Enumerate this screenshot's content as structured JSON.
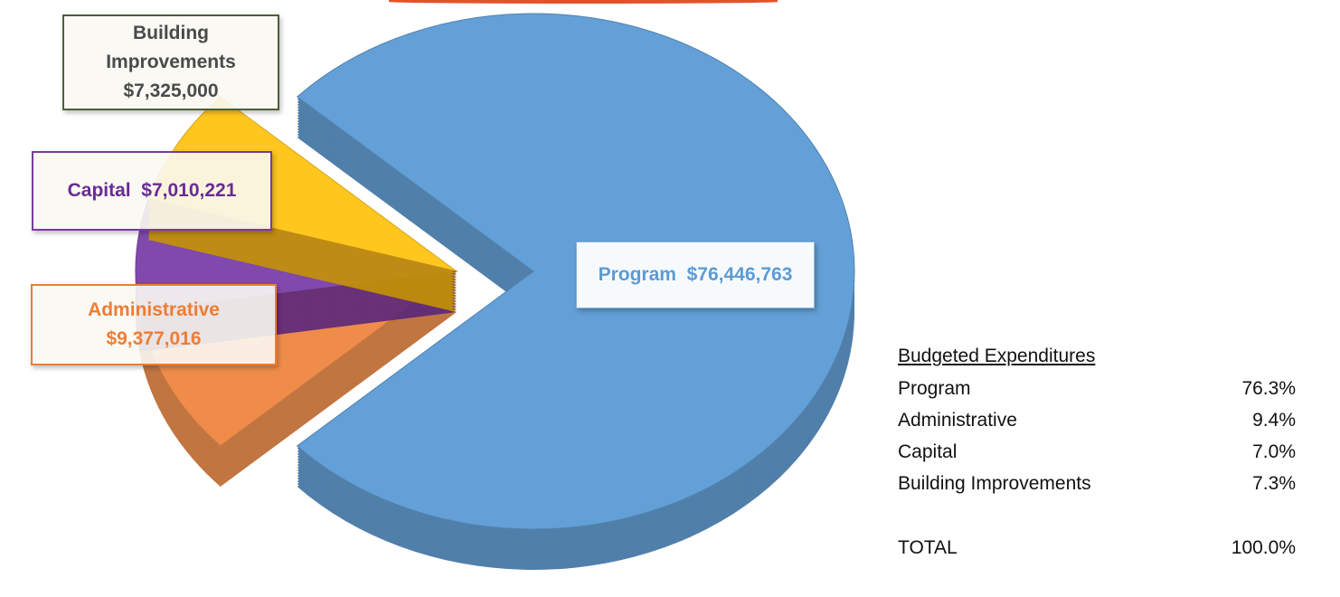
{
  "chart_data": {
    "type": "pie",
    "title": "Budgeted Expenditures",
    "style": "3d-exploded",
    "slices": [
      {
        "name": "Program",
        "value": 76446763,
        "label": "Program  $76,446,763",
        "percent": "76.3%",
        "color": "#5b9bd5"
      },
      {
        "name": "Administrative",
        "value": 9377016,
        "label_line1": "Administrative",
        "label_line2": "$9,377,016",
        "percent": "9.4%",
        "color": "#ed7d31"
      },
      {
        "name": "Capital",
        "value": 7010221,
        "label": "Capital  $7,010,221",
        "percent": "7.0%",
        "color": "#7030a0"
      },
      {
        "name": "Building Improvements",
        "value": 7325000,
        "label_line1": "Building",
        "label_line2": "Improvements",
        "label_line3": "$7,325,000",
        "percent": "7.3%",
        "color": "#ffc000"
      }
    ]
  },
  "table": {
    "header": "Budgeted Expenditures",
    "rows": [
      {
        "label": "Program",
        "value": "76.3%"
      },
      {
        "label": "Administrative",
        "value": "9.4%"
      },
      {
        "label": "Capital",
        "value": "7.0%"
      },
      {
        "label": "Building Improvements",
        "value": "7.3%"
      }
    ],
    "total_label": "TOTAL",
    "total_value": "100.0%"
  }
}
